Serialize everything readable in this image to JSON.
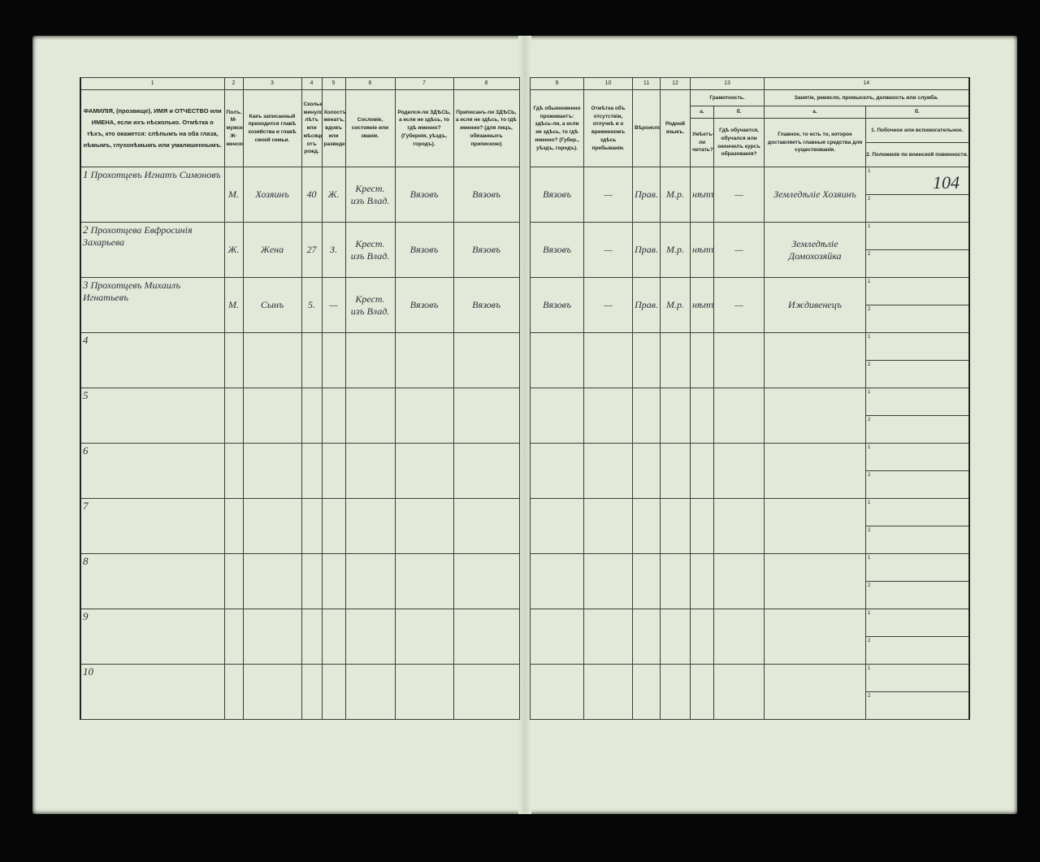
{
  "page_number": "104",
  "headers": {
    "left": [
      {
        "n": "1",
        "text": "ФАМИЛІЯ, (прозвище), ИМЯ и ОТЧЕСТВО или ИМЕНА, если ихъ нѣсколько. Отмѣтка о тѣхъ, кто окажется: слѣпымъ на оба глаза, нѣмымъ, глухонѣмымъ или умалишеннымъ."
      },
      {
        "n": "2",
        "text": "Полъ. М-мужской. Ж-женской."
      },
      {
        "n": "3",
        "text": "Какъ записанный приходится главѣ хозяйства и главѣ своей семьи."
      },
      {
        "n": "4",
        "text": "Сколько минуло лѣтъ или мѣсяцевъ отъ рожд."
      },
      {
        "n": "5",
        "text": "Холостъ, женатъ, вдовъ или разведенъ."
      },
      {
        "n": "6",
        "text": "Сословіе, состояніе или званіе."
      },
      {
        "n": "7",
        "text": "Родился-ли ЗДѢСЬ, а если не здѣсь, то гдѣ именно? (Губернія, уѣздъ, городъ)."
      },
      {
        "n": "8",
        "text": "Приписанъ-ли ЗДѢСЬ, а если не здѣсь, то гдѣ именно? (для лицъ, обязанныхъ припискою)"
      }
    ],
    "right": [
      {
        "n": "9",
        "text": "Гдѣ обыкновенно проживаетъ: здѣсь-ли, а если не здѣсь, то гдѣ именно? (Губер., уѣздъ, городъ)."
      },
      {
        "n": "10",
        "text": "Отмѣтка объ отсутствіи, отлучкѣ и о временномъ здѣсь пребываніи."
      },
      {
        "n": "11",
        "text": "Вѣроисповѣданіе."
      },
      {
        "n": "12",
        "text": "Родной языкъ."
      }
    ],
    "col13": {
      "n": "13",
      "title": "Грамотность.",
      "a": "а.",
      "a_text": "Умѣетъ-ли читать?",
      "b": "б.",
      "b_text": "Гдѣ обучается, обучался или окончилъ курсъ образованія?"
    },
    "col14": {
      "n": "14",
      "title": "Занятіе, ремесло, промыселъ, должность или служба.",
      "a": "а.",
      "a_text": "Главное, то есть то, которое доставляетъ главныя средства для существованія.",
      "b": "б.",
      "b1": "1. Побочное или вспомогательное.",
      "b2": "2. Положеніе по воинской повинности."
    }
  },
  "rows": [
    {
      "n": "1",
      "name": "Прохотцевъ Игнатъ Симоновъ",
      "sex": "М.",
      "relation": "Хозяинъ",
      "age": "40",
      "marital": "Ж.",
      "estate": "Крест. изъ Влад.",
      "born": "Вязовъ",
      "registered": "Вязовъ",
      "residence": "Вязовъ",
      "absence": "—",
      "religion": "Прав.",
      "language": "М.р.",
      "literate": "нѣтъ",
      "education": "—",
      "occupation": "Земледѣліе Хозяинъ"
    },
    {
      "n": "2",
      "name": "Прохотцева Евфросинія Захарьева",
      "sex": "Ж.",
      "relation": "Жена",
      "age": "27",
      "marital": "З.",
      "estate": "Крест. изъ Влад.",
      "born": "Вязовъ",
      "registered": "Вязовъ",
      "residence": "Вязовъ",
      "absence": "—",
      "religion": "Прав.",
      "language": "М.р.",
      "literate": "нѣтъ",
      "education": "—",
      "occupation": "Земледѣліе Домохозяйка"
    },
    {
      "n": "3",
      "name": "Прохотцевъ Михаилъ Игнатьевъ",
      "sex": "М.",
      "relation": "Сынъ",
      "age": "5.",
      "marital": "—",
      "estate": "Крест. изъ Влад.",
      "born": "Вязовъ",
      "registered": "Вязовъ",
      "residence": "Вязовъ",
      "absence": "—",
      "religion": "Прав.",
      "language": "М.р.",
      "literate": "нѣтъ",
      "education": "—",
      "occupation": "Иждивенецъ"
    },
    {
      "n": "4"
    },
    {
      "n": "5"
    },
    {
      "n": "6"
    },
    {
      "n": "7"
    },
    {
      "n": "8"
    },
    {
      "n": "9"
    },
    {
      "n": "10"
    }
  ],
  "sub_labels": [
    "1",
    "2"
  ]
}
